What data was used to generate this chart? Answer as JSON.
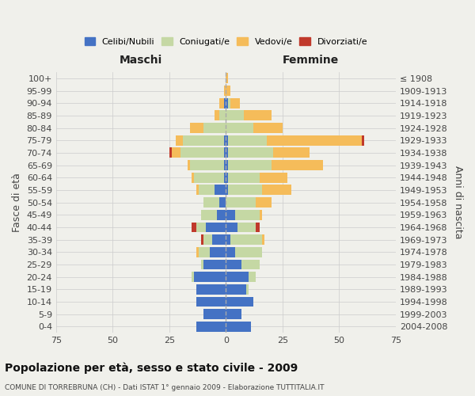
{
  "age_groups": [
    "0-4",
    "5-9",
    "10-14",
    "15-19",
    "20-24",
    "25-29",
    "30-34",
    "35-39",
    "40-44",
    "45-49",
    "50-54",
    "55-59",
    "60-64",
    "65-69",
    "70-74",
    "75-79",
    "80-84",
    "85-89",
    "90-94",
    "95-99",
    "100+"
  ],
  "birth_years": [
    "2004-2008",
    "1999-2003",
    "1994-1998",
    "1989-1993",
    "1984-1988",
    "1979-1983",
    "1974-1978",
    "1969-1973",
    "1964-1968",
    "1959-1963",
    "1954-1958",
    "1949-1953",
    "1944-1948",
    "1939-1943",
    "1934-1938",
    "1929-1933",
    "1924-1928",
    "1919-1923",
    "1914-1918",
    "1909-1913",
    "≤ 1908"
  ],
  "colors": {
    "celibi": "#4472c4",
    "coniugati": "#c5d8a4",
    "vedovi": "#f5bc5a",
    "divorziati": "#c0392b"
  },
  "maschi": {
    "celibi": [
      13,
      10,
      13,
      13,
      14,
      10,
      7,
      6,
      9,
      4,
      3,
      5,
      1,
      1,
      1,
      1,
      0,
      0,
      1,
      0,
      0
    ],
    "coniugati": [
      0,
      0,
      0,
      0,
      1,
      1,
      5,
      4,
      4,
      7,
      7,
      7,
      13,
      15,
      19,
      18,
      10,
      3,
      0,
      0,
      0
    ],
    "vedovi": [
      0,
      0,
      0,
      0,
      0,
      0,
      1,
      0,
      0,
      0,
      0,
      1,
      1,
      1,
      4,
      3,
      6,
      2,
      2,
      1,
      0
    ],
    "divorziati": [
      0,
      0,
      0,
      0,
      0,
      0,
      0,
      1,
      2,
      0,
      0,
      0,
      0,
      0,
      1,
      0,
      0,
      0,
      0,
      0,
      0
    ]
  },
  "femmine": {
    "celibi": [
      11,
      7,
      12,
      9,
      10,
      7,
      4,
      2,
      5,
      4,
      0,
      1,
      1,
      1,
      1,
      1,
      0,
      0,
      1,
      0,
      0
    ],
    "coniugati": [
      0,
      0,
      0,
      1,
      3,
      8,
      12,
      14,
      8,
      11,
      13,
      15,
      14,
      19,
      20,
      17,
      12,
      8,
      1,
      0,
      0
    ],
    "vedovi": [
      0,
      0,
      0,
      0,
      0,
      0,
      0,
      1,
      0,
      1,
      7,
      13,
      12,
      23,
      16,
      42,
      13,
      12,
      4,
      2,
      1
    ],
    "divorziati": [
      0,
      0,
      0,
      0,
      0,
      0,
      0,
      0,
      2,
      0,
      0,
      0,
      0,
      0,
      0,
      1,
      0,
      0,
      0,
      0,
      0
    ]
  },
  "xlim": 75,
  "title": "Popolazione per età, sesso e stato civile - 2009",
  "subtitle": "COMUNE DI TORREBRUNA (CH) - Dati ISTAT 1° gennaio 2009 - Elaborazione TUTTITALIA.IT",
  "ylabel_left": "Fasce di età",
  "ylabel_right": "Anni di nascita",
  "xlabel_left": "Maschi",
  "xlabel_right": "Femmine",
  "background_color": "#f0f0eb",
  "grid_color": "#cccccc"
}
